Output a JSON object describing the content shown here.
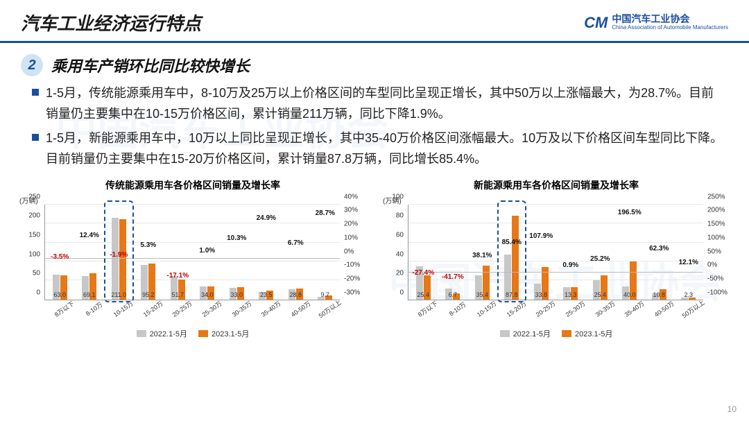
{
  "header": {
    "title": "汽车工业经济运行特点",
    "logo_mark": "CM",
    "logo_cn": "中国汽车工业协会",
    "logo_en": "China Association of Automobile Manufacturers"
  },
  "section": {
    "number": "2",
    "subtitle": "乘用车产销环比同比较快增长"
  },
  "bullets": [
    "1-5月，传统能源乘用车中，8-10万及25万以上价格区间的车型同比呈现正增长，其中50万以上涨幅最大，为28.7%。目前销量仍主要集中在10-15万价格区间，累计销量211万辆，同比下降1.9%。",
    "1-5月，新能源乘用车中，10万以上同比呈现正增长，其中35-40万价格区间涨幅最大。10万及以下价格区间车型同比下降。目前销量仍主要集中在15-20万价格区间，累计销量87.8万辆，同比增长85.4%。"
  ],
  "charts": {
    "left": {
      "title": "传统能源乘用车各价格区间销量及增长率",
      "y_unit": "(万辆)",
      "y_left": {
        "min": 0,
        "max": 250,
        "step": 50
      },
      "y_right": {
        "min": -30,
        "max": 40,
        "step": 10,
        "suffix": "%"
      },
      "categories": [
        "8万以下",
        "8-10万",
        "10-15万",
        "15-20万",
        "20-25万",
        "25-30万",
        "30-35万",
        "35-40万",
        "40-50万",
        "50万以上"
      ],
      "series_a_label": "2022.1-5月",
      "series_b_label": "2023.1-5月",
      "series_b_values": [
        63.0,
        69.1,
        211.0,
        95.2,
        51.7,
        34.0,
        33.0,
        23.5,
        28.8,
        9.7
      ],
      "series_a_values": [
        65.3,
        61.5,
        215.1,
        90.5,
        62.4,
        33.7,
        29.9,
        18.8,
        27.0,
        7.5
      ],
      "growth_pct": [
        -3.5,
        12.4,
        -1.9,
        5.3,
        -17.1,
        1.0,
        10.3,
        24.9,
        6.7,
        28.7
      ],
      "highlight_index": 2,
      "bar_color_a": "#c7c7c7",
      "bar_color_b": "#e67817"
    },
    "right": {
      "title": "新能源乘用车各价格区间销量及增长率",
      "y_unit": "(万辆)",
      "y_left": {
        "min": 0,
        "max": 100,
        "step": 20
      },
      "y_right": {
        "min": -100,
        "max": 250,
        "step": 50,
        "suffix": "%"
      },
      "categories": [
        "8万以下",
        "8-10万",
        "10-15万",
        "15-20万",
        "20-25万",
        "25-30万",
        "30-35万",
        "35-40万",
        "40-50万",
        "50万以上"
      ],
      "series_a_label": "2022.1-5月",
      "series_b_label": "2023.1-5月",
      "series_b_values": [
        25.4,
        6.7,
        35.4,
        87.8,
        33.8,
        13.3,
        25.4,
        40.0,
        10.8,
        2.3
      ],
      "series_a_values": [
        35.0,
        11.5,
        25.6,
        47.4,
        16.3,
        13.2,
        20.3,
        13.5,
        6.7,
        2.1
      ],
      "growth_pct": [
        -27.4,
        -41.7,
        38.1,
        85.4,
        107.9,
        0.9,
        25.2,
        196.5,
        62.3,
        12.1
      ],
      "highlight_index": 3,
      "bar_color_a": "#c7c7c7",
      "bar_color_b": "#e67817"
    }
  },
  "page_number": "10",
  "colors": {
    "primary": "#1a4e9e",
    "accent": "#e67817",
    "neg": "#c00000"
  }
}
